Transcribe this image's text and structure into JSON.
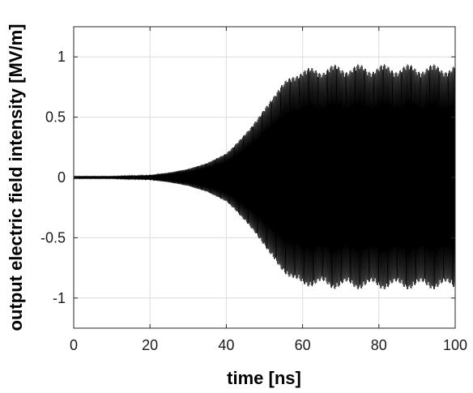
{
  "chart_data": {
    "type": "line",
    "title": "",
    "xlabel": "time [ns]",
    "ylabel": "output electric field intensity [MV/m]",
    "xlim": [
      0,
      100
    ],
    "ylim": [
      -1.25,
      1.25
    ],
    "xticks": [
      0,
      20,
      40,
      60,
      80,
      100
    ],
    "yticks": [
      -1,
      -0.5,
      0,
      0.5,
      1
    ],
    "xtick_labels": [
      "0",
      "20",
      "40",
      "60",
      "80",
      "100"
    ],
    "ytick_labels": [
      "-1",
      "-0.5",
      "0",
      "0.5",
      "1"
    ],
    "grid": true,
    "legend": "none",
    "series": [
      {
        "style": "dense oscillation, black",
        "color": "#000000",
        "x": [
          0,
          10,
          20,
          25,
          30,
          35,
          40,
          42,
          44,
          46,
          48,
          50,
          52,
          54,
          56,
          58,
          60,
          65,
          70,
          80,
          90,
          100
        ],
        "envelope_upper": [
          0.01,
          0.01,
          0.02,
          0.04,
          0.07,
          0.12,
          0.2,
          0.26,
          0.33,
          0.4,
          0.48,
          0.57,
          0.66,
          0.75,
          0.82,
          0.87,
          0.9,
          0.93,
          0.94,
          0.94,
          0.94,
          0.94
        ],
        "envelope_lower": [
          -0.01,
          -0.01,
          -0.02,
          -0.04,
          -0.07,
          -0.12,
          -0.2,
          -0.26,
          -0.33,
          -0.4,
          -0.48,
          -0.57,
          -0.66,
          -0.75,
          -0.82,
          -0.87,
          -0.9,
          -0.92,
          -0.93,
          -0.93,
          -0.93,
          -0.93
        ]
      }
    ]
  }
}
